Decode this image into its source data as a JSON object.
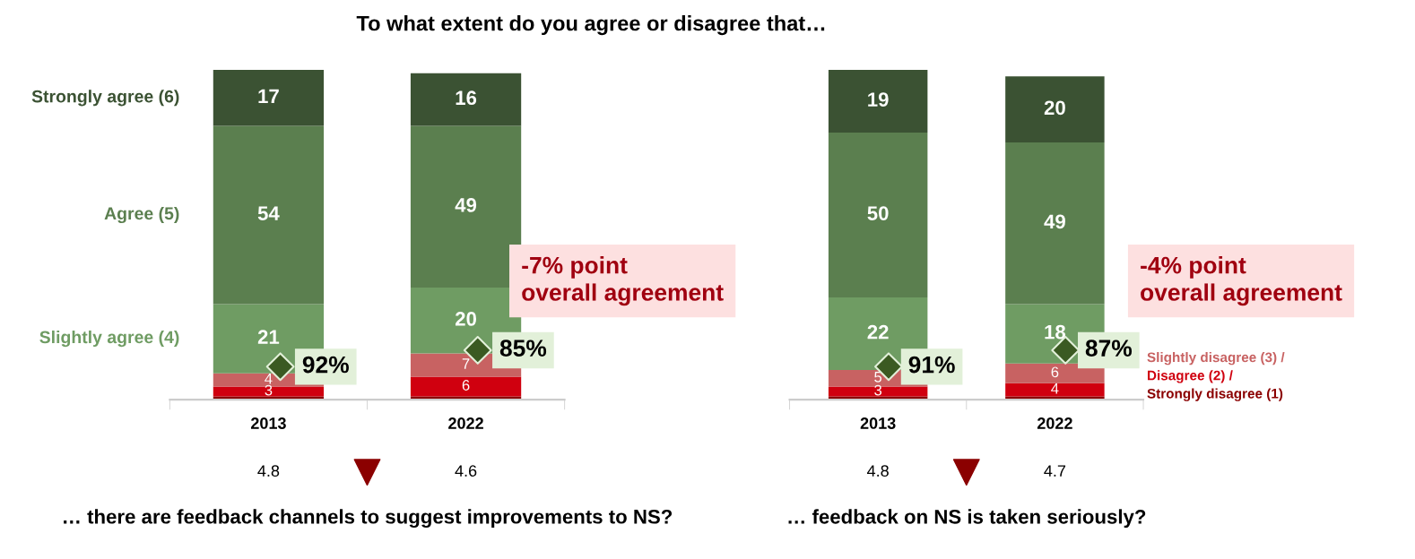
{
  "chart_data": [
    {
      "type": "bar",
      "stacked": true,
      "title": "To what extent do you agree or disagree that…",
      "xlabel": "… there are feedback channels to suggest improvements to NS?",
      "categories": [
        "2013",
        "2022"
      ],
      "ylim": [
        0,
        100
      ],
      "tick_labels": "x",
      "grid": false,
      "legend": false,
      "series": [
        {
          "color": "#8b0000",
          "values": [
            1,
            1
          ],
          "value_labels": [
            null,
            null
          ]
        },
        {
          "color": "#d0000f",
          "values": [
            3,
            6
          ],
          "value_labels": [
            "3",
            "6"
          ]
        },
        {
          "color": "#c86262",
          "values": [
            4,
            7
          ],
          "value_labels": [
            "4",
            "7"
          ]
        },
        {
          "name": "Slightly agree (4)",
          "color": "#6f9c63",
          "values": [
            21,
            20
          ],
          "value_labels": [
            "21",
            "20"
          ]
        },
        {
          "name": "Agree (5)",
          "color": "#5b7f4f",
          "values": [
            54,
            49
          ],
          "value_labels": [
            "54",
            "49"
          ]
        },
        {
          "name": "Strongly agree (6)",
          "color": "#3b5233",
          "values": [
            17,
            16
          ],
          "value_labels": [
            "17",
            "16"
          ]
        }
      ],
      "annotations": [
        "4.8",
        "4.6",
        "-7% point\noverall agreement",
        "92%",
        "85%"
      ]
    },
    {
      "type": "bar",
      "stacked": true,
      "xlabel": "… feedback on NS is taken seriously?",
      "categories": [
        "2013",
        "2022"
      ],
      "ylim": [
        0,
        100
      ],
      "tick_labels": "x",
      "grid": false,
      "legend": false,
      "series": [
        {
          "name": "Strongly disagree (1)",
          "color": "#8b0000",
          "values": [
            1,
            1
          ],
          "value_labels": [
            null,
            null
          ]
        },
        {
          "name": "Disagree (2) /",
          "color": "#d0000f",
          "values": [
            3,
            4
          ],
          "value_labels": [
            "3",
            "4"
          ]
        },
        {
          "name": "Slightly disagree (3) /",
          "color": "#c86262",
          "values": [
            5,
            6
          ],
          "value_labels": [
            "5",
            "6"
          ]
        },
        {
          "color": "#6f9c63",
          "values": [
            22,
            18
          ],
          "value_labels": [
            "22",
            "18"
          ]
        },
        {
          "color": "#5b7f4f",
          "values": [
            50,
            49
          ],
          "value_labels": [
            "50",
            "49"
          ]
        },
        {
          "color": "#3b5233",
          "values": [
            19,
            20
          ],
          "value_labels": [
            "19",
            "20"
          ]
        }
      ],
      "annotations": [
        "4.8",
        "4.7",
        "-4% point\noverall agreement",
        "91%",
        "87%"
      ]
    }
  ]
}
